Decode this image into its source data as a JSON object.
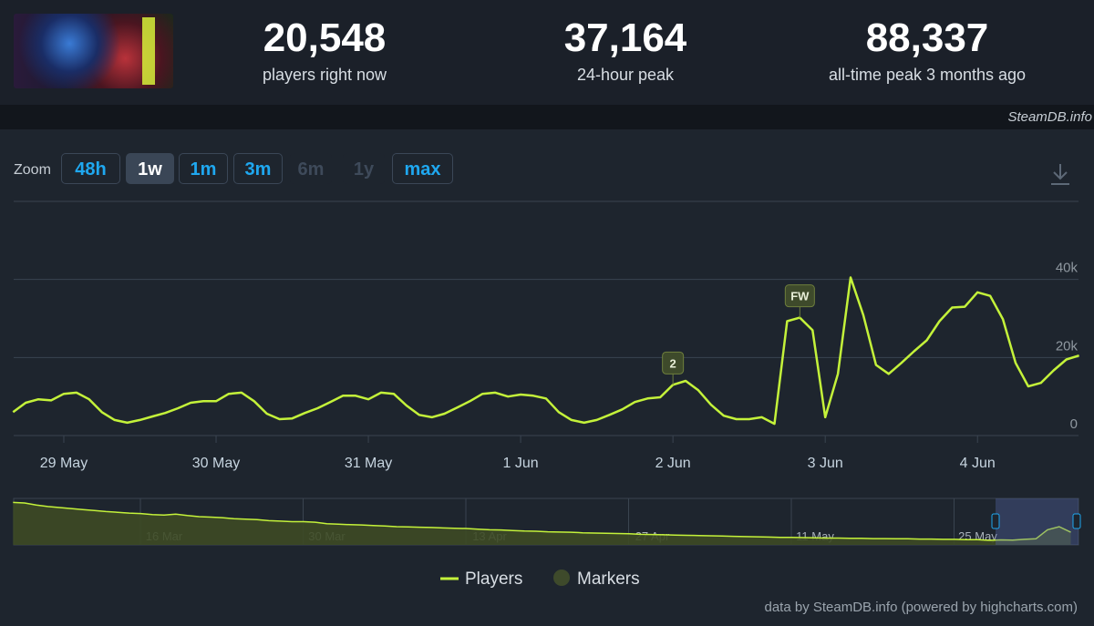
{
  "header": {
    "stats": [
      {
        "value": "20,548",
        "label": "players right now"
      },
      {
        "value": "37,164",
        "label": "24-hour peak"
      },
      {
        "value": "88,337",
        "label": "all-time peak 3 months ago"
      }
    ],
    "brand": "SteamDB.info"
  },
  "zoom": {
    "label": "Zoom",
    "buttons": [
      "48h",
      "1w",
      "1m",
      "3m",
      "6m",
      "1y",
      "max"
    ]
  },
  "chart_data": {
    "type": "line",
    "categories": [
      null,
      null,
      null,
      null,
      "29 May",
      null,
      null,
      null,
      null,
      null,
      null,
      null,
      null,
      null,
      null,
      null,
      "30 May",
      null,
      null,
      null,
      null,
      null,
      null,
      null,
      null,
      null,
      null,
      null,
      "31 May",
      null,
      null,
      null,
      null,
      null,
      null,
      null,
      null,
      null,
      null,
      null,
      "1 Jun",
      null,
      null,
      null,
      null,
      null,
      null,
      null,
      null,
      null,
      null,
      null,
      "2 Jun",
      null,
      null,
      null,
      null,
      null,
      null,
      null,
      null,
      null,
      null,
      null,
      "3 Jun",
      null,
      null,
      null,
      null,
      null,
      null,
      null,
      null,
      null,
      null,
      null,
      "4 Jun",
      null,
      null,
      null,
      null,
      null,
      null,
      null,
      null
    ],
    "series": [
      {
        "name": "Players",
        "color": "#c4f23a",
        "values": [
          6000,
          8400,
          9300,
          9000,
          10700,
          11000,
          9300,
          6000,
          4000,
          3300,
          4000,
          4900,
          5800,
          7000,
          8400,
          8800,
          8800,
          10700,
          11000,
          8800,
          5600,
          4200,
          4400,
          5800,
          7000,
          8600,
          10200,
          10200,
          9300,
          11000,
          10700,
          7700,
          5300,
          4700,
          5600,
          7200,
          8800,
          10700,
          11000,
          10000,
          10500,
          10200,
          9500,
          6000,
          4000,
          3300,
          4000,
          5300,
          6700,
          8600,
          9500,
          9800,
          13000,
          14000,
          11600,
          7900,
          5100,
          4200,
          4200,
          4700,
          3000,
          29300,
          30200,
          27000,
          4700,
          15800,
          40500,
          30900,
          18100,
          15800,
          18600,
          21600,
          24400,
          29300,
          32800,
          33000,
          36700,
          35800,
          29800,
          18600,
          12600,
          13500,
          16700,
          19500,
          20500
        ]
      }
    ],
    "markers": {
      "name": "Markers",
      "color": "#3e4a2b",
      "labels": [
        null,
        null,
        null,
        null,
        null,
        null,
        null,
        null,
        null,
        null,
        null,
        null,
        null,
        null,
        null,
        null,
        null,
        null,
        null,
        null,
        null,
        null,
        null,
        null,
        null,
        null,
        null,
        null,
        null,
        null,
        null,
        null,
        null,
        null,
        null,
        null,
        null,
        null,
        null,
        null,
        null,
        null,
        null,
        null,
        null,
        null,
        null,
        null,
        null,
        null,
        null,
        null,
        "2",
        null,
        null,
        null,
        null,
        null,
        null,
        null,
        null,
        null,
        "FW",
        null,
        null,
        null,
        null,
        null,
        null,
        null,
        null,
        null,
        null,
        null,
        null,
        null,
        null,
        null,
        null,
        null,
        null,
        null,
        null,
        null,
        null
      ]
    },
    "ylim": [
      0,
      60000
    ],
    "yticks": [
      {
        "value": 0,
        "label": "0"
      },
      {
        "value": 20000,
        "label": "20k"
      },
      {
        "value": 40000,
        "label": "40k"
      }
    ],
    "grid": true,
    "legend": "bottom",
    "navigator": {
      "categories": [
        null,
        null,
        null,
        null,
        null,
        null,
        null,
        null,
        null,
        null,
        null,
        null,
        null,
        "16 Mar",
        null,
        null,
        null,
        null,
        null,
        null,
        null,
        null,
        null,
        null,
        null,
        null,
        null,
        "30 Mar",
        null,
        null,
        null,
        null,
        null,
        null,
        null,
        null,
        null,
        null,
        null,
        null,
        null,
        "13 Apr",
        null,
        null,
        null,
        null,
        null,
        null,
        null,
        null,
        null,
        null,
        null,
        null,
        null,
        "27 Apr",
        null,
        null,
        null,
        null,
        null,
        null,
        null,
        null,
        null,
        null,
        null,
        null,
        null,
        "11 May",
        null,
        null,
        null,
        null,
        null,
        null,
        null,
        null,
        null,
        null,
        null,
        null,
        null,
        "25 May",
        null,
        null,
        null,
        null,
        null,
        null,
        null,
        null
      ],
      "values": [
        84000,
        83000,
        79000,
        76000,
        74000,
        72000,
        70000,
        68000,
        66000,
        64500,
        63000,
        62000,
        60000,
        59000,
        61000,
        58000,
        56000,
        55000,
        54000,
        52000,
        51000,
        50000,
        48000,
        47000,
        46000,
        46000,
        45000,
        42000,
        41000,
        40000,
        39500,
        38500,
        37500,
        36000,
        35500,
        35000,
        34500,
        33500,
        33000,
        32500,
        31000,
        30000,
        29500,
        28500,
        27500,
        27000,
        26000,
        25500,
        25000,
        24000,
        23500,
        23000,
        22500,
        22000,
        21000,
        20500,
        20000,
        19500,
        19000,
        18500,
        18000,
        17500,
        17000,
        16500,
        16000,
        15500,
        15000,
        15000,
        14500,
        14000,
        13500,
        13500,
        13000,
        13000,
        12500,
        12500,
        12000,
        12000,
        11500,
        11500,
        11000,
        11000,
        10500,
        10500,
        9000,
        10000,
        9500,
        11000,
        12000,
        30000,
        36000,
        25000
      ],
      "ylim": [
        0,
        92000
      ]
    }
  },
  "credit": "data by SteamDB.info (powered by highcharts.com)"
}
